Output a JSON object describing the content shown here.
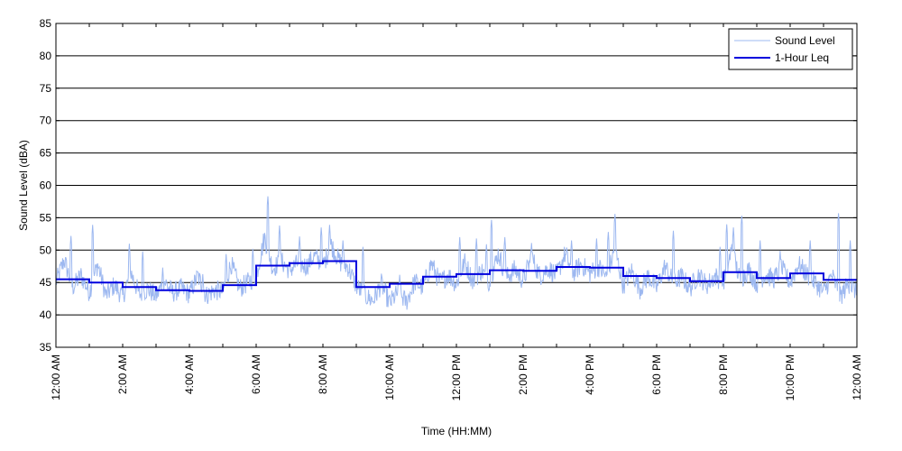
{
  "chart_data": {
    "type": "line",
    "title": "",
    "xlabel": "Time (HH:MM)",
    "ylabel": "Sound Level (dBA)",
    "ylim": [
      35,
      85
    ],
    "yticks": [
      35,
      40,
      45,
      50,
      55,
      60,
      65,
      70,
      75,
      80,
      85
    ],
    "xlim_hours": [
      0,
      24
    ],
    "xtick_labels": [
      "12:00 AM",
      "2:00 AM",
      "4:00 AM",
      "6:00 AM",
      "8:00 AM",
      "10:00 AM",
      "12:00 PM",
      "2:00 PM",
      "4:00 PM",
      "6:00 PM",
      "8:00 PM",
      "10:00 PM",
      "12:00 AM"
    ],
    "grid": "horizontal",
    "legend_position": "top-right",
    "colors": {
      "sound_level": "#9db8f0",
      "leq": "#0000dd",
      "grid": "#000000"
    },
    "series": [
      {
        "name": "Sound Level",
        "x_hours": [
          0.0,
          0.25,
          0.5,
          0.75,
          1.0,
          1.25,
          1.5,
          1.75,
          2.0,
          2.25,
          2.5,
          2.75,
          3.0,
          3.25,
          3.5,
          3.75,
          4.0,
          4.25,
          4.5,
          4.75,
          5.0,
          5.25,
          5.5,
          5.75,
          6.0,
          6.25,
          6.5,
          6.75,
          7.0,
          7.25,
          7.5,
          7.75,
          8.0,
          8.25,
          8.5,
          8.75,
          9.0,
          9.25,
          9.5,
          9.75,
          10.0,
          10.25,
          10.5,
          10.75,
          11.0,
          11.25,
          11.5,
          11.75,
          12.0,
          12.25,
          12.5,
          12.75,
          13.0,
          13.25,
          13.5,
          13.75,
          14.0,
          14.25,
          14.5,
          14.75,
          15.0,
          15.25,
          15.5,
          15.75,
          16.0,
          16.25,
          16.5,
          16.75,
          17.0,
          17.25,
          17.5,
          17.75,
          18.0,
          18.25,
          18.5,
          18.75,
          19.0,
          19.25,
          19.5,
          19.75,
          20.0,
          20.25,
          20.5,
          20.75,
          21.0,
          21.25,
          21.5,
          21.75,
          22.0,
          22.25,
          22.5,
          22.75,
          23.0,
          23.25,
          23.5,
          23.75,
          24.0
        ],
        "values": [
          45.0,
          48.5,
          44.2,
          46.1,
          43.5,
          47.8,
          43.0,
          44.6,
          42.8,
          46.5,
          43.1,
          44.0,
          42.9,
          45.2,
          43.4,
          44.1,
          43.2,
          46.0,
          43.0,
          43.8,
          43.6,
          47.9,
          44.1,
          45.0,
          46.0,
          52.0,
          47.2,
          48.3,
          46.9,
          48.0,
          47.5,
          49.1,
          47.6,
          50.8,
          48.2,
          47.4,
          44.5,
          43.0,
          42.2,
          44.8,
          41.8,
          43.5,
          42.0,
          45.1,
          44.2,
          48.0,
          45.0,
          46.2,
          44.8,
          48.1,
          45.2,
          46.9,
          45.0,
          49.5,
          45.8,
          47.0,
          45.3,
          48.9,
          46.0,
          47.2,
          46.1,
          49.3,
          46.5,
          47.8,
          46.4,
          47.5,
          45.8,
          50.2,
          44.5,
          46.8,
          44.0,
          46.0,
          44.2,
          47.5,
          45.0,
          45.9,
          44.1,
          46.2,
          44.6,
          46.0,
          45.0,
          50.1,
          45.3,
          47.0,
          44.8,
          46.3,
          45.5,
          47.1,
          45.0,
          47.8,
          46.2,
          45.0,
          43.5,
          46.1,
          42.8,
          44.9,
          43.5
        ],
        "peaks": [
          [
            0.45,
            52.2
          ],
          [
            1.1,
            53.9
          ],
          [
            2.2,
            51.0
          ],
          [
            2.6,
            49.8
          ],
          [
            3.2,
            47.3
          ],
          [
            4.4,
            46.3
          ],
          [
            5.1,
            49.4
          ],
          [
            5.9,
            50.2
          ],
          [
            6.35,
            58.3
          ],
          [
            6.7,
            53.8
          ],
          [
            7.3,
            52.1
          ],
          [
            7.95,
            53.5
          ],
          [
            8.2,
            53.9
          ],
          [
            8.6,
            51.5
          ],
          [
            9.2,
            50.5
          ],
          [
            10.3,
            46.2
          ],
          [
            12.1,
            52.0
          ],
          [
            12.6,
            51.8
          ],
          [
            12.9,
            50.9
          ],
          [
            13.05,
            54.7
          ],
          [
            13.45,
            52.0
          ],
          [
            14.25,
            51.1
          ],
          [
            15.3,
            50.4
          ],
          [
            15.45,
            51.5
          ],
          [
            16.2,
            51.8
          ],
          [
            16.55,
            52.8
          ],
          [
            16.75,
            55.6
          ],
          [
            18.5,
            53.0
          ],
          [
            19.9,
            50.5
          ],
          [
            20.1,
            54.0
          ],
          [
            20.3,
            53.5
          ],
          [
            20.55,
            55.3
          ],
          [
            21.1,
            51.5
          ],
          [
            21.7,
            49.9
          ],
          [
            22.6,
            51.5
          ],
          [
            23.45,
            55.7
          ],
          [
            23.8,
            51.5
          ]
        ]
      },
      {
        "name": "1-Hour Leq",
        "hour_starts": [
          0,
          1,
          2,
          3,
          4,
          5,
          6,
          7,
          8,
          9,
          10,
          11,
          12,
          13,
          14,
          15,
          16,
          17,
          18,
          19,
          20,
          21,
          22,
          23
        ],
        "values": [
          45.5,
          45.0,
          44.3,
          43.8,
          43.7,
          44.6,
          47.6,
          48.0,
          48.3,
          44.3,
          44.8,
          45.9,
          46.3,
          46.9,
          46.8,
          47.4,
          47.3,
          46.0,
          45.7,
          45.2,
          46.6,
          45.7,
          46.4,
          45.4
        ]
      }
    ]
  }
}
